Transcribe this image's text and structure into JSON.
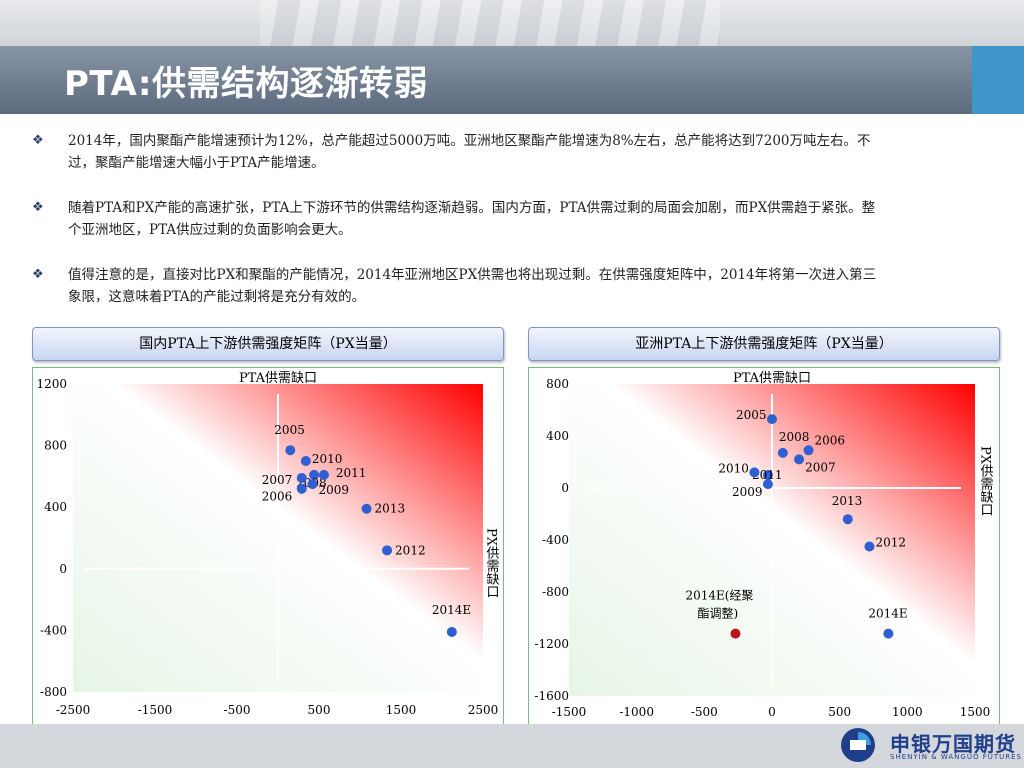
{
  "page": {
    "title": "PTA:供需结构逐渐转弱"
  },
  "bullets": [
    "2014年，国内聚酯产能增速预计为12%，总产能超过5000万吨。亚洲地区聚酯产能增速为8%左右，总产能将达到7200万吨左右。不过，聚酯产能增速大幅小于PTA产能增速。",
    "随着PTA和PX产能的高速扩张，PTA上下游环节的供需结构逐渐趋弱。国内方面，PTA供需过剩的局面会加剧，而PX供需趋于紧张。整个亚洲地区，PTA供应过剩的负面影响会更大。",
    "值得注意的是，直接对比PX和聚酯的产能情况，2014年亚洲地区PX供需也将出现过剩。在供需强度矩阵中，2014年将第一次进入第三象限，这意味着PTA的产能过剩将是充分有效的。"
  ],
  "colors": {
    "point_blue": "#2f5fd0",
    "point_red": "#c0101a",
    "heat_red": "#ff0000",
    "heat_green": "#e6f5e6",
    "axis": "#ffffff"
  },
  "chart_data": [
    {
      "type": "scatter",
      "title": "国内PTA上下游供需强度矩阵（PX当量）",
      "top_label": "PTA供需缺口",
      "right_label": "PX供需缺口",
      "xlim": [
        -2500,
        2500
      ],
      "ylim": [
        -800,
        1200
      ],
      "x_ticks": [
        -2500,
        -1500,
        -500,
        500,
        1500,
        2500
      ],
      "y_ticks": [
        1200,
        800,
        400,
        0,
        -400,
        -800
      ],
      "background": "red-green diagonal gradient",
      "points": [
        {
          "label": "2005",
          "x": 150,
          "y": 770,
          "color": "blue"
        },
        {
          "label": "2010",
          "x": 340,
          "y": 700,
          "color": "blue"
        },
        {
          "label": "2008",
          "x": 440,
          "y": 610,
          "color": "blue"
        },
        {
          "label": "2011",
          "x": 560,
          "y": 610,
          "color": "blue"
        },
        {
          "label": "2007",
          "x": 290,
          "y": 590,
          "color": "blue"
        },
        {
          "label": "2009",
          "x": 420,
          "y": 550,
          "color": "blue"
        },
        {
          "label": "2006",
          "x": 290,
          "y": 520,
          "color": "blue"
        },
        {
          "label": "2013",
          "x": 1080,
          "y": 390,
          "color": "blue"
        },
        {
          "label": "2012",
          "x": 1330,
          "y": 120,
          "color": "blue"
        },
        {
          "label": "2014E",
          "x": 2120,
          "y": -410,
          "color": "blue"
        }
      ]
    },
    {
      "type": "scatter",
      "title": "亚洲PTA上下游供需强度矩阵（PX当量）",
      "top_label": "PTA供需缺口",
      "right_label": "PX供需缺口",
      "xlim": [
        -1500,
        1500
      ],
      "ylim": [
        -1600,
        800
      ],
      "x_ticks": [
        -1500,
        -1000,
        -500,
        0,
        500,
        1000,
        1500
      ],
      "y_ticks": [
        800,
        400,
        0,
        -400,
        -800,
        -1200,
        -1600
      ],
      "background": "red-green diagonal gradient",
      "points": [
        {
          "label": "2005",
          "x": 0,
          "y": 530,
          "color": "blue"
        },
        {
          "label": "2008",
          "x": 80,
          "y": 270,
          "color": "blue"
        },
        {
          "label": "2006",
          "x": 270,
          "y": 290,
          "color": "blue"
        },
        {
          "label": "2011",
          "x": -30,
          "y": 100,
          "color": "blue"
        },
        {
          "label": "2007",
          "x": 200,
          "y": 220,
          "color": "blue"
        },
        {
          "label": "2010",
          "x": -130,
          "y": 120,
          "color": "blue"
        },
        {
          "label": "2009",
          "x": -30,
          "y": 30,
          "color": "blue"
        },
        {
          "label": "2013",
          "x": 560,
          "y": -240,
          "color": "blue"
        },
        {
          "label": "2012",
          "x": 720,
          "y": -450,
          "color": "blue"
        },
        {
          "label": "2014E",
          "x": 860,
          "y": -1120,
          "color": "blue"
        },
        {
          "label": "2014E(经聚酯调整)",
          "x": -270,
          "y": -1120,
          "color": "red"
        }
      ]
    }
  ],
  "footer": {
    "logo_text": "申银万国期货",
    "logo_sub": "SHENYIN & WANGUO FUTURES"
  }
}
